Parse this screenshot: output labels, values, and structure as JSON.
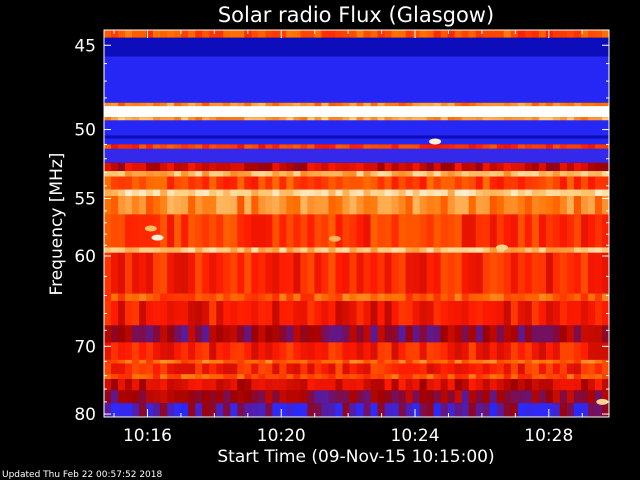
{
  "chart_data": {
    "type": "heatmap",
    "title": "Solar radio Flux (Glasgow)",
    "xlabel": "Start Time (09-Nov-15 10:15:00)",
    "ylabel": "Frequency [MHz]",
    "x_ticks": [
      {
        "label": "10:16",
        "minutes": 1
      },
      {
        "label": "10:20",
        "minutes": 5
      },
      {
        "label": "10:24",
        "minutes": 9
      },
      {
        "label": "10:28",
        "minutes": 13
      }
    ],
    "y_ticks": [
      {
        "label": "45",
        "value": 45
      },
      {
        "label": "50",
        "value": 50
      },
      {
        "label": "55",
        "value": 55
      },
      {
        "label": "60",
        "value": 60
      },
      {
        "label": "70",
        "value": 70
      },
      {
        "label": "80",
        "value": 80
      }
    ],
    "xlim_minutes": [
      -0.3,
      14.8
    ],
    "ylim_mhz": [
      44.2,
      80.5
    ],
    "frequency_axis": "reciprocal",
    "colormap": [
      "#00009e",
      "#2b2bff",
      "#a00000",
      "#ff1a00",
      "#ff7000",
      "#ffd080",
      "#ffffff"
    ],
    "frequency_bands": [
      {
        "f0": 44.2,
        "f1": 44.6,
        "intensity": 0.6
      },
      {
        "f0": 44.6,
        "f1": 45.6,
        "intensity": 0.05
      },
      {
        "f0": 45.6,
        "f1": 48.3,
        "intensity": 0.15
      },
      {
        "f0": 48.3,
        "f1": 48.5,
        "intensity": 0.7
      },
      {
        "f0": 48.5,
        "f1": 49.2,
        "intensity": 1.0
      },
      {
        "f0": 49.2,
        "f1": 49.4,
        "intensity": 0.75
      },
      {
        "f0": 49.4,
        "f1": 50.4,
        "intensity": 0.15
      },
      {
        "f0": 50.4,
        "f1": 50.6,
        "intensity": 0.05
      },
      {
        "f0": 50.6,
        "f1": 51.0,
        "intensity": 0.15
      },
      {
        "f0": 51.0,
        "f1": 51.3,
        "intensity": 0.55
      },
      {
        "f0": 51.3,
        "f1": 52.3,
        "intensity": 0.18
      },
      {
        "f0": 52.3,
        "f1": 52.9,
        "intensity": 0.4
      },
      {
        "f0": 52.9,
        "f1": 53.3,
        "intensity": 0.8
      },
      {
        "f0": 53.3,
        "f1": 54.3,
        "intensity": 0.58
      },
      {
        "f0": 54.3,
        "f1": 54.8,
        "intensity": 0.85
      },
      {
        "f0": 54.8,
        "f1": 56.3,
        "intensity": 0.7
      },
      {
        "f0": 56.3,
        "f1": 59.2,
        "intensity": 0.55
      },
      {
        "f0": 59.2,
        "f1": 59.7,
        "intensity": 0.82
      },
      {
        "f0": 59.7,
        "f1": 63.8,
        "intensity": 0.52
      },
      {
        "f0": 63.8,
        "f1": 64.6,
        "intensity": 0.62
      },
      {
        "f0": 64.6,
        "f1": 67.4,
        "intensity": 0.48
      },
      {
        "f0": 67.4,
        "f1": 69.5,
        "intensity": 0.32
      },
      {
        "f0": 69.5,
        "f1": 71.8,
        "intensity": 0.5
      },
      {
        "f0": 71.8,
        "f1": 72.3,
        "intensity": 0.65
      },
      {
        "f0": 72.3,
        "f1": 73.8,
        "intensity": 0.52
      },
      {
        "f0": 73.8,
        "f1": 74.5,
        "intensity": 0.6
      },
      {
        "f0": 74.5,
        "f1": 76.2,
        "intensity": 0.42
      },
      {
        "f0": 76.2,
        "f1": 78.2,
        "intensity": 0.32
      },
      {
        "f0": 78.2,
        "f1": 80.5,
        "intensity": 0.24
      }
    ],
    "hotspots": [
      {
        "minute": 1.3,
        "freq": 58.3,
        "intensity": 0.95
      },
      {
        "minute": 1.1,
        "freq": 57.5,
        "intensity": 0.8
      },
      {
        "minute": 6.6,
        "freq": 58.4,
        "intensity": 0.78
      },
      {
        "minute": 9.6,
        "freq": 50.8,
        "intensity": 0.95
      },
      {
        "minute": 11.6,
        "freq": 59.2,
        "intensity": 0.85
      },
      {
        "minute": 14.6,
        "freq": 78.0,
        "intensity": 0.85
      }
    ]
  },
  "footer": {
    "updated": "Updated Thu Feb 22 00:57:52 2018"
  }
}
